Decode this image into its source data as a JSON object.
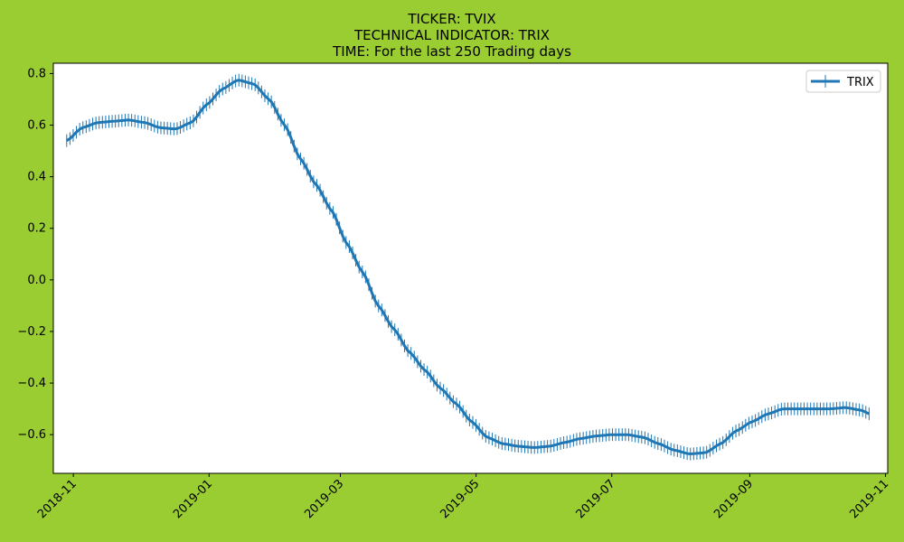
{
  "colors": {
    "figure_background": "#9acd32",
    "plot_background": "#ffffff",
    "series": "#1f77b4"
  },
  "chart_data": {
    "type": "line",
    "title_lines": [
      "TICKER:  TVIX",
      "TECHNICAL INDICATOR:  TRIX",
      "TIME: For the last 250 Trading days"
    ],
    "xlabel": "",
    "ylabel": "",
    "x_type": "date",
    "xlim": [
      "2018-10-23",
      "2019-11-02"
    ],
    "ylim": [
      -0.75,
      0.84
    ],
    "x_ticks": [
      "2018-11-01",
      "2019-01-01",
      "2019-03-01",
      "2019-05-01",
      "2019-07-01",
      "2019-09-01",
      "2019-11-01"
    ],
    "x_tick_labels": [
      "2018-11",
      "2019-01",
      "2019-03",
      "2019-05",
      "2019-07",
      "2019-09",
      "2019-11"
    ],
    "y_ticks": [
      -0.6,
      -0.4,
      -0.2,
      0.0,
      0.2,
      0.4,
      0.6,
      0.8
    ],
    "y_tick_labels": [
      "−0.6",
      "−0.4",
      "−0.2",
      "0.0",
      "0.2",
      "0.4",
      "0.6",
      "0.8"
    ],
    "grid": false,
    "legend_position": "top-right",
    "marker": "vertical-line",
    "series": [
      {
        "name": "TRIX",
        "color": "#1f77b4",
        "x": [
          "2018-10-29",
          "2018-11-05",
          "2018-11-12",
          "2018-11-19",
          "2018-11-26",
          "2018-12-03",
          "2018-12-10",
          "2018-12-17",
          "2018-12-24",
          "2018-12-31",
          "2019-01-07",
          "2019-01-14",
          "2019-01-21",
          "2019-01-28",
          "2019-02-04",
          "2019-02-11",
          "2019-02-18",
          "2019-02-25",
          "2019-03-04",
          "2019-03-11",
          "2019-03-18",
          "2019-03-25",
          "2019-04-01",
          "2019-04-08",
          "2019-04-15",
          "2019-04-22",
          "2019-04-29",
          "2019-05-06",
          "2019-05-13",
          "2019-05-20",
          "2019-05-27",
          "2019-06-03",
          "2019-06-10",
          "2019-06-17",
          "2019-06-24",
          "2019-07-01",
          "2019-07-08",
          "2019-07-15",
          "2019-07-22",
          "2019-07-29",
          "2019-08-05",
          "2019-08-12",
          "2019-08-19",
          "2019-08-26",
          "2019-09-02",
          "2019-09-09",
          "2019-09-16",
          "2019-09-23",
          "2019-09-30",
          "2019-10-07",
          "2019-10-14",
          "2019-10-21",
          "2019-10-25"
        ],
        "y": [
          0.54,
          0.59,
          0.61,
          0.615,
          0.62,
          0.61,
          0.59,
          0.585,
          0.61,
          0.68,
          0.74,
          0.775,
          0.76,
          0.7,
          0.6,
          0.47,
          0.37,
          0.27,
          0.14,
          0.03,
          -0.1,
          -0.19,
          -0.28,
          -0.35,
          -0.42,
          -0.48,
          -0.55,
          -0.61,
          -0.635,
          -0.645,
          -0.65,
          -0.645,
          -0.63,
          -0.615,
          -0.605,
          -0.6,
          -0.6,
          -0.61,
          -0.635,
          -0.66,
          -0.675,
          -0.67,
          -0.635,
          -0.585,
          -0.55,
          -0.52,
          -0.5,
          -0.5,
          -0.5,
          -0.5,
          -0.495,
          -0.505,
          -0.52
        ]
      }
    ]
  }
}
